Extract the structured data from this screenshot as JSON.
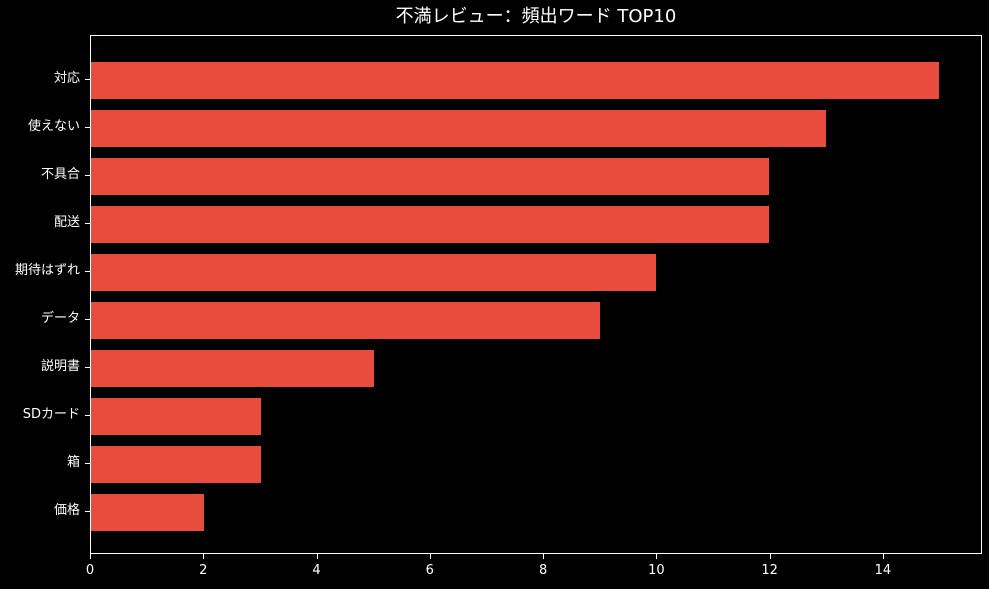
{
  "colors": {
    "background": "#000000",
    "bar": "#E74C3C",
    "text": "#FFFFFF",
    "axis": "#FFFFFF"
  },
  "chart_data": {
    "type": "bar",
    "orientation": "horizontal",
    "title": "不満レビュー：頻出ワード TOP10",
    "categories": [
      "対応",
      "使えない",
      "不具合",
      "配送",
      "期待はずれ",
      "データ",
      "説明書",
      "SDカード",
      "箱",
      "価格"
    ],
    "values": [
      15,
      13,
      12,
      12,
      10,
      9,
      5,
      3,
      3,
      2
    ],
    "xlabel": "",
    "ylabel": "",
    "xlim": [
      0,
      15.75
    ],
    "xticks": [
      0,
      2,
      4,
      6,
      8,
      10,
      12,
      14
    ],
    "grid": false,
    "legend": null,
    "bar_color": "#E74C3C"
  }
}
